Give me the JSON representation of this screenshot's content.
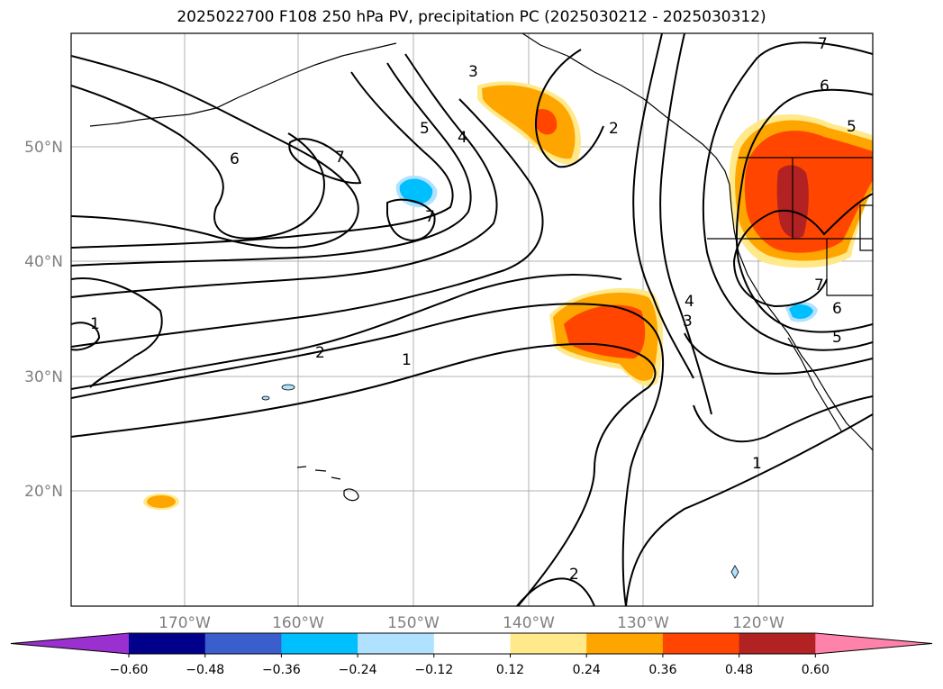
{
  "title": "2025022700 F108 250 hPa PV, precipitation PC (2025030212 - 2025030312)",
  "lat_labels": [
    "50°N",
    "40°N",
    "30°N",
    "20°N"
  ],
  "lon_labels": [
    "170°W",
    "160°W",
    "150°W",
    "140°W",
    "130°W",
    "120°W"
  ],
  "colorbar": {
    "ticks": [
      "−0.60",
      "−0.48",
      "−0.36",
      "−0.24",
      "−0.12",
      "0.12",
      "0.24",
      "0.36",
      "0.48",
      "0.60"
    ],
    "colors": [
      "#9b30d0",
      "#00008b",
      "#3a5fcd",
      "#00bfff",
      "#b0e2ff",
      "#ffffff",
      "#ffe98a",
      "#ffa500",
      "#ff4500",
      "#b22222",
      "#ff82ab"
    ]
  },
  "contour_labels": {
    "c1": "1",
    "c2": "2",
    "c3": "3",
    "c4": "4",
    "c5": "5",
    "c6": "6",
    "c7": "7"
  }
}
